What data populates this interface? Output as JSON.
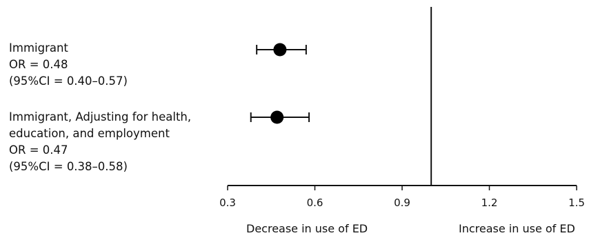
{
  "chart_data": {
    "type": "forest",
    "xlim": [
      0.3,
      1.5
    ],
    "x_ticks": [
      0.3,
      0.6,
      0.9,
      1.2,
      1.5
    ],
    "x_tick_labels": [
      "0.3",
      "0.6",
      "0.9",
      "1.2",
      "1.5"
    ],
    "reference_line": 1.0,
    "captions": {
      "left": "Decrease in use of ED",
      "right": "Increase in use of ED"
    },
    "rows": [
      {
        "label_lines": [
          "Immigrant",
          "OR = 0.48",
          "(95%CI = 0.40–0.57)"
        ],
        "estimate": 0.48,
        "ci_low": 0.4,
        "ci_high": 0.57
      },
      {
        "label_lines": [
          "Immigrant, Adjusting for health,",
          "education, and employment",
          "OR = 0.47",
          "(95%CI = 0.38–0.58)"
        ],
        "estimate": 0.47,
        "ci_low": 0.38,
        "ci_high": 0.58
      }
    ]
  }
}
